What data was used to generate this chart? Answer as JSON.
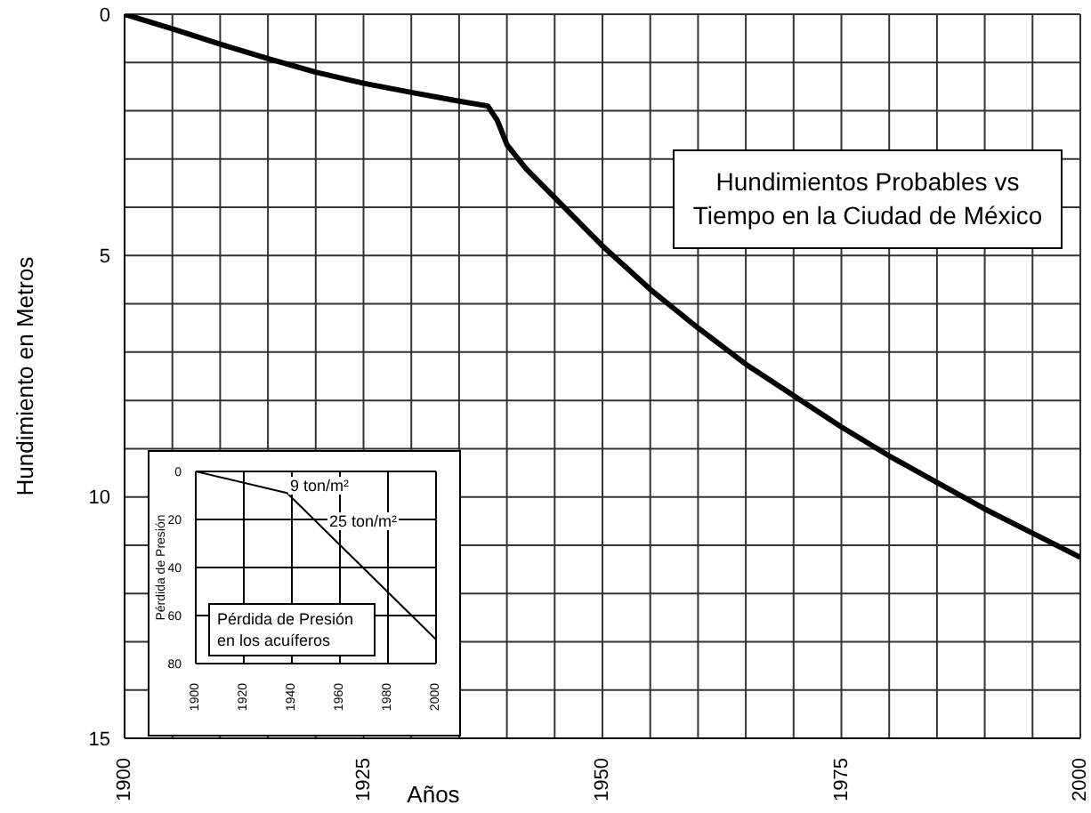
{
  "chart_data": [
    {
      "type": "line",
      "title": "Hundimientos Probables vs Tiempo en la Ciudad de México",
      "xlabel": "Años",
      "ylabel": "Hundimiento en Metros",
      "x": [
        1900,
        1905,
        1910,
        1915,
        1920,
        1925,
        1930,
        1935,
        1938,
        1939,
        1940,
        1942,
        1945,
        1950,
        1955,
        1960,
        1965,
        1970,
        1975,
        1980,
        1985,
        1990,
        1995,
        2000
      ],
      "series": [
        {
          "color": "#000000",
          "values": [
            0,
            0.3,
            0.62,
            0.92,
            1.2,
            1.43,
            1.62,
            1.8,
            1.9,
            2.2,
            2.7,
            3.2,
            3.8,
            4.8,
            5.7,
            6.5,
            7.25,
            7.9,
            8.55,
            9.15,
            9.7,
            10.25,
            10.75,
            11.25
          ]
        }
      ],
      "xlim": [
        1900,
        2000
      ],
      "xticks": [
        1900,
        {
          "value": 1905,
          "label": null
        },
        {
          "value": 1910,
          "label": null
        },
        {
          "value": 1915,
          "label": null
        },
        {
          "value": 1920,
          "label": null
        },
        1925,
        {
          "value": 1930,
          "label": null
        },
        {
          "value": 1935,
          "label": null
        },
        {
          "value": 1940,
          "label": null
        },
        {
          "value": 1945,
          "label": null
        },
        1950,
        {
          "value": 1955,
          "label": null
        },
        {
          "value": 1960,
          "label": null
        },
        {
          "value": 1965,
          "label": null
        },
        {
          "value": 1970,
          "label": null
        },
        1975,
        {
          "value": 1980,
          "label": null
        },
        {
          "value": 1985,
          "label": null
        },
        {
          "value": 1990,
          "label": null
        },
        {
          "value": 1995,
          "label": null
        },
        2000
      ],
      "ylim": [
        15,
        0
      ],
      "yticks": [
        0,
        {
          "value": 1,
          "label": null
        },
        {
          "value": 2,
          "label": null
        },
        {
          "value": 3,
          "label": null
        },
        {
          "value": 4,
          "label": null
        },
        5,
        {
          "value": 6,
          "label": null
        },
        {
          "value": 7,
          "label": null
        },
        {
          "value": 8,
          "label": null
        },
        {
          "value": 9,
          "label": null
        },
        10,
        {
          "value": 11,
          "label": null
        },
        {
          "value": 12,
          "label": null
        },
        {
          "value": 13,
          "label": null
        },
        {
          "value": 14,
          "label": null
        },
        15
      ],
      "grid": true,
      "legend": false,
      "marker": "none",
      "line_style": "solid"
    },
    {
      "type": "line",
      "title": "Pérdida de Presión en los acuíferos",
      "ylabel": "Pérdida de Presión",
      "x": [
        1900,
        1938,
        2000
      ],
      "series": [
        {
          "color": "#000000",
          "values": [
            0,
            9,
            70
          ]
        }
      ],
      "annotations": [
        "9 ton/m²",
        "25 ton/m²"
      ],
      "xlim": [
        1900,
        2000
      ],
      "xticks": [
        1900,
        1920,
        1940,
        1960,
        1980,
        2000
      ],
      "ylim": [
        80,
        0
      ],
      "yticks": [
        0,
        20,
        40,
        60,
        80
      ],
      "grid": true,
      "legend": false,
      "marker": "none",
      "line_style": "solid"
    }
  ]
}
